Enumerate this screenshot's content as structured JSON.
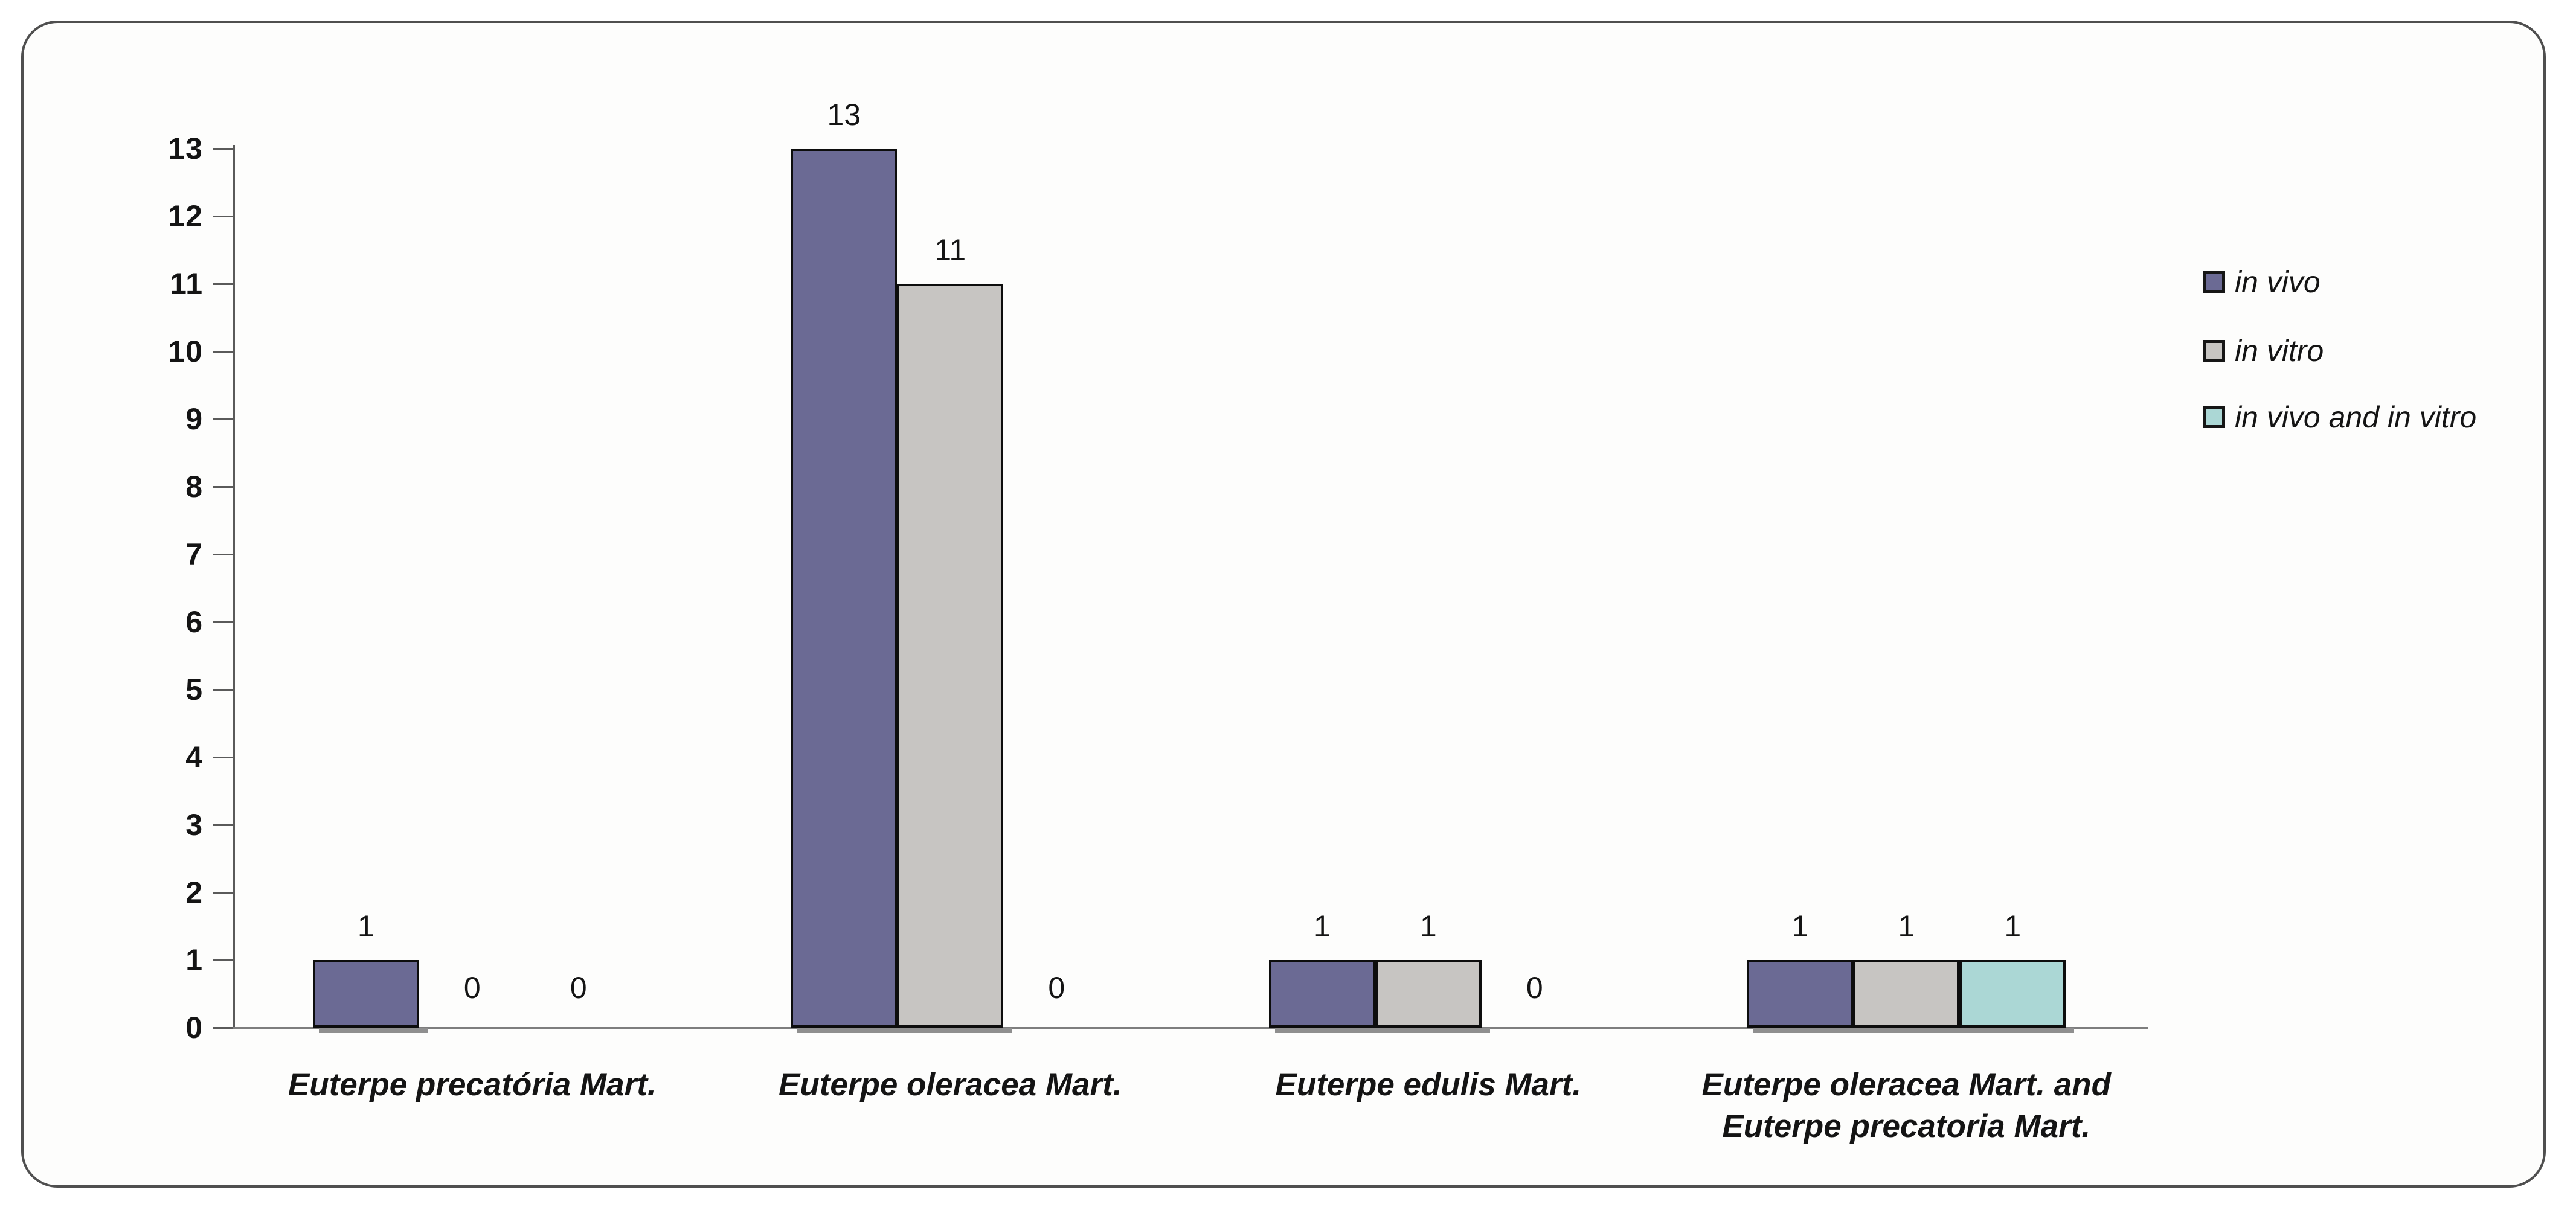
{
  "chart_data": {
    "type": "bar",
    "title": "",
    "xlabel": "",
    "ylabel": "",
    "categories": [
      "Euterpe precatória Mart.",
      "Euterpe oleracea Mart.",
      "Euterpe edulis Mart.",
      "Euterpe oleracea Mart. and Euterpe precatoria Mart."
    ],
    "category_label_lines": [
      [
        "Euterpe precatória Mart."
      ],
      [
        "Euterpe oleracea Mart."
      ],
      [
        "Euterpe edulis Mart."
      ],
      [
        "Euterpe oleracea Mart. and",
        "Euterpe precatoria Mart."
      ]
    ],
    "series": [
      {
        "name": "in vivo",
        "color": "#6b6a94",
        "values": [
          1,
          13,
          1,
          1
        ]
      },
      {
        "name": "in vitro",
        "color": "#c7c5c2",
        "values": [
          0,
          11,
          1,
          1
        ]
      },
      {
        "name": "in vivo and in vitro",
        "color": "#abd7d5",
        "values": [
          0,
          0,
          0,
          1
        ]
      }
    ],
    "show_value_labels": true,
    "ylim": [
      0,
      13
    ],
    "yticks": [
      0,
      1,
      2,
      3,
      4,
      5,
      6,
      7,
      8,
      9,
      10,
      11,
      12,
      13
    ],
    "grid": false,
    "legend_position": "right",
    "bar_border_color": "#000000",
    "axis_color": "#7e7e7e",
    "frame_border_color": "#4f4f4f"
  }
}
